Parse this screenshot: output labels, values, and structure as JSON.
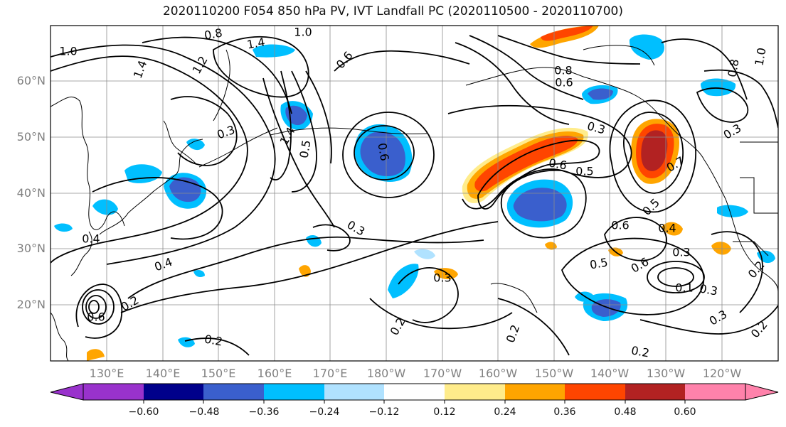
{
  "title": "2020110200 F054 850 hPa PV, IVT Landfall PC (2020110500 - 2020110700)",
  "lat_labels": [
    "60°N",
    "50°N",
    "40°N",
    "30°N",
    "20°N"
  ],
  "lon_labels": [
    "130°E",
    "140°E",
    "150°E",
    "160°E",
    "170°E",
    "180°W",
    "170°W",
    "160°W",
    "150°W",
    "140°W",
    "130°W",
    "120°W"
  ],
  "colorbar": {
    "ticks": [
      "−0.60",
      "−0.48",
      "−0.36",
      "−0.24",
      "−0.12",
      "0.12",
      "0.24",
      "0.36",
      "0.48",
      "0.60"
    ],
    "colors": [
      "#9932cc",
      "#00008b",
      "#3a5fcd",
      "#00bfff",
      "#b0e2ff",
      "#ffffff",
      "#ffec8b",
      "#ffa500",
      "#ff4500",
      "#b22222",
      "#ff82ab"
    ]
  },
  "contour_labels": [
    "1.0",
    "0.8",
    "1.4",
    "1.0",
    "1.4",
    "1.2",
    "0.6",
    "0.3",
    "1.4",
    "0.5",
    "0.6",
    "0.3",
    "0.8",
    "0.6",
    "0.3",
    "0.6",
    "0.5",
    "0.7",
    "0.5",
    "0.6",
    "0.4",
    "0.5",
    "0.3",
    "0.4",
    "0.2",
    "0.4",
    "0.6",
    "0.2",
    "0.2",
    "0.3",
    "0.2",
    "0.2",
    "0.6",
    "0.1",
    "0.3",
    "0.3",
    "0.2",
    "0.2",
    "1.0",
    "0.8",
    "0.3"
  ],
  "colors": {
    "shade_pos1": "#ffec8b",
    "shade_pos2": "#ffa500",
    "shade_pos3": "#ff4500",
    "shade_pos4": "#b22222",
    "shade_neg1": "#b0e2ff",
    "shade_neg2": "#00bfff",
    "shade_neg3": "#3a5fcd",
    "shade_neg4": "#00008b"
  }
}
